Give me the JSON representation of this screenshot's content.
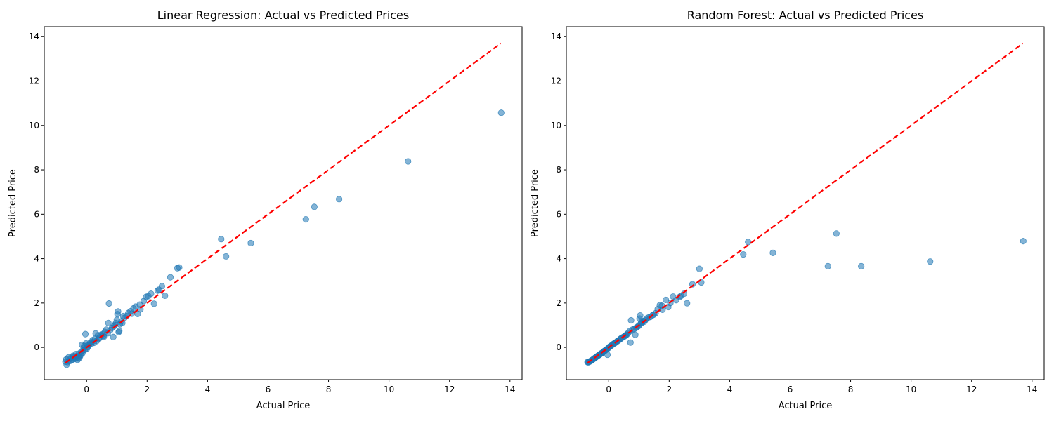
{
  "chart_data": [
    {
      "type": "scatter",
      "title": "Linear Regression: Actual vs Predicted Prices",
      "xlabel": "Actual Price",
      "ylabel": "Predicted Price",
      "xlim": [
        -1.4,
        14.4
      ],
      "ylim": [
        -1.45,
        14.45
      ],
      "xticks": [
        0,
        2,
        4,
        6,
        8,
        10,
        12,
        14
      ],
      "yticks": [
        0,
        2,
        4,
        6,
        8,
        10,
        12,
        14
      ],
      "grid": false,
      "point_color": "#1f77b4",
      "point_alpha": 0.55,
      "reference_line": {
        "x": [
          -0.7,
          13.7
        ],
        "y": [
          -0.7,
          13.7
        ],
        "color": "#ff0000",
        "style": "dashed"
      },
      "points": [
        [
          13.71,
          10.57
        ],
        [
          10.63,
          8.38
        ],
        [
          8.35,
          6.68
        ],
        [
          7.53,
          6.33
        ],
        [
          7.25,
          5.77
        ],
        [
          4.45,
          4.88
        ],
        [
          5.43,
          4.7
        ],
        [
          4.61,
          4.1
        ],
        [
          3.0,
          3.57
        ],
        [
          3.06,
          3.6
        ],
        [
          2.77,
          3.16
        ],
        [
          2.49,
          2.76
        ],
        [
          2.59,
          2.33
        ],
        [
          2.39,
          2.6
        ],
        [
          2.35,
          2.56
        ],
        [
          2.23,
          1.97
        ],
        [
          2.13,
          2.42
        ],
        [
          2.04,
          2.31
        ],
        [
          1.97,
          2.28
        ],
        [
          1.89,
          2.09
        ],
        [
          1.78,
          1.72
        ],
        [
          1.76,
          1.93
        ],
        [
          1.69,
          1.51
        ],
        [
          1.62,
          1.84
        ],
        [
          1.55,
          1.76
        ],
        [
          1.49,
          1.52
        ],
        [
          1.45,
          1.63
        ],
        [
          1.38,
          1.55
        ],
        [
          1.32,
          1.41
        ],
        [
          1.25,
          1.33
        ],
        [
          1.21,
          1.41
        ],
        [
          1.15,
          1.18
        ],
        [
          1.1,
          1.04
        ],
        [
          1.08,
          0.74
        ],
        [
          1.06,
          0.69
        ],
        [
          1.04,
          1.62
        ],
        [
          1.02,
          1.5
        ],
        [
          1.0,
          1.24
        ],
        [
          0.97,
          1.1
        ],
        [
          0.93,
          1.01
        ],
        [
          0.88,
          0.47
        ],
        [
          0.84,
          0.88
        ],
        [
          0.78,
          0.78
        ],
        [
          0.74,
          1.98
        ],
        [
          0.72,
          1.1
        ],
        [
          0.7,
          0.64
        ],
        [
          0.65,
          0.8
        ],
        [
          0.6,
          0.7
        ],
        [
          0.57,
          0.48
        ],
        [
          0.52,
          0.59
        ],
        [
          0.47,
          0.56
        ],
        [
          0.42,
          0.43
        ],
        [
          0.38,
          0.55
        ],
        [
          0.33,
          0.29
        ],
        [
          0.3,
          0.63
        ],
        [
          0.28,
          0.39
        ],
        [
          0.24,
          0.21
        ],
        [
          0.2,
          0.33
        ],
        [
          0.15,
          0.15
        ],
        [
          0.12,
          0.21
        ],
        [
          0.08,
          0.1
        ],
        [
          0.04,
          0.02
        ],
        [
          0.01,
          -0.05
        ],
        [
          -0.02,
          0.18
        ],
        [
          -0.04,
          0.6
        ],
        [
          -0.06,
          -0.11
        ],
        [
          -0.08,
          0.07
        ],
        [
          -0.12,
          -0.14
        ],
        [
          -0.15,
          0.12
        ],
        [
          -0.18,
          -0.2
        ],
        [
          -0.2,
          -0.34
        ],
        [
          -0.22,
          -0.41
        ],
        [
          -0.25,
          -0.28
        ],
        [
          -0.28,
          -0.46
        ],
        [
          -0.3,
          -0.56
        ],
        [
          -0.33,
          -0.39
        ],
        [
          -0.36,
          -0.48
        ],
        [
          -0.4,
          -0.52
        ],
        [
          -0.43,
          -0.43
        ],
        [
          -0.46,
          -0.55
        ],
        [
          -0.5,
          -0.46
        ],
        [
          -0.53,
          -0.6
        ],
        [
          -0.56,
          -0.5
        ],
        [
          -0.6,
          -0.45
        ],
        [
          -0.63,
          -0.66
        ],
        [
          -0.66,
          -0.78
        ],
        [
          -0.68,
          -0.55
        ],
        [
          -0.7,
          -0.64
        ],
        [
          -0.35,
          -0.3
        ],
        [
          -0.1,
          -0.02
        ],
        [
          0.05,
          0.12
        ],
        [
          0.18,
          0.25
        ],
        [
          0.4,
          0.38
        ],
        [
          0.55,
          0.52
        ],
        [
          0.9,
          0.95
        ],
        [
          1.18,
          1.1
        ],
        [
          -0.45,
          -0.38
        ],
        [
          -0.58,
          -0.62
        ],
        [
          -0.26,
          -0.5
        ],
        [
          -0.14,
          -0.26
        ]
      ]
    },
    {
      "type": "scatter",
      "title": "Random Forest: Actual vs Predicted Prices",
      "xlabel": "Actual Price",
      "ylabel": "Predicted Price",
      "xlim": [
        -1.4,
        14.4
      ],
      "ylim": [
        -1.45,
        14.45
      ],
      "xticks": [
        0,
        2,
        4,
        6,
        8,
        10,
        12,
        14
      ],
      "yticks": [
        0,
        2,
        4,
        6,
        8,
        10,
        12,
        14
      ],
      "grid": false,
      "point_color": "#1f77b4",
      "point_alpha": 0.55,
      "reference_line": {
        "x": [
          -0.7,
          13.7
        ],
        "y": [
          -0.7,
          13.7
        ],
        "color": "#ff0000",
        "style": "dashed"
      },
      "points": [
        [
          13.71,
          4.79
        ],
        [
          10.63,
          3.87
        ],
        [
          8.35,
          3.66
        ],
        [
          7.53,
          5.13
        ],
        [
          7.25,
          3.66
        ],
        [
          4.45,
          4.19
        ],
        [
          5.43,
          4.26
        ],
        [
          4.61,
          4.75
        ],
        [
          3.0,
          3.54
        ],
        [
          3.06,
          2.93
        ],
        [
          2.77,
          2.85
        ],
        [
          2.49,
          2.42
        ],
        [
          2.59,
          1.99
        ],
        [
          2.39,
          2.32
        ],
        [
          2.35,
          2.28
        ],
        [
          2.23,
          2.13
        ],
        [
          2.13,
          2.29
        ],
        [
          2.04,
          2.0
        ],
        [
          1.97,
          1.82
        ],
        [
          1.89,
          2.14
        ],
        [
          1.78,
          1.7
        ],
        [
          1.76,
          1.88
        ],
        [
          1.69,
          1.9
        ],
        [
          1.62,
          1.72
        ],
        [
          1.55,
          1.54
        ],
        [
          1.49,
          1.48
        ],
        [
          1.45,
          1.45
        ],
        [
          1.38,
          1.38
        ],
        [
          1.32,
          1.35
        ],
        [
          1.25,
          1.3
        ],
        [
          1.21,
          1.23
        ],
        [
          1.15,
          1.19
        ],
        [
          1.1,
          1.1
        ],
        [
          1.08,
          1.14
        ],
        [
          1.06,
          1.08
        ],
        [
          1.04,
          1.44
        ],
        [
          1.02,
          1.3
        ],
        [
          1.0,
          0.98
        ],
        [
          0.97,
          0.95
        ],
        [
          0.93,
          0.9
        ],
        [
          0.88,
          0.57
        ],
        [
          0.84,
          0.83
        ],
        [
          0.78,
          0.8
        ],
        [
          0.74,
          1.22
        ],
        [
          0.72,
          0.22
        ],
        [
          0.7,
          0.74
        ],
        [
          0.65,
          0.66
        ],
        [
          0.6,
          0.58
        ],
        [
          0.57,
          0.55
        ],
        [
          0.52,
          0.5
        ],
        [
          0.47,
          0.46
        ],
        [
          0.42,
          0.42
        ],
        [
          0.38,
          0.37
        ],
        [
          0.33,
          0.32
        ],
        [
          0.3,
          0.3
        ],
        [
          0.28,
          0.27
        ],
        [
          0.24,
          0.23
        ],
        [
          0.2,
          0.19
        ],
        [
          0.15,
          0.15
        ],
        [
          0.12,
          0.12
        ],
        [
          0.08,
          0.08
        ],
        [
          0.04,
          0.04
        ],
        [
          0.01,
          0.0
        ],
        [
          -0.02,
          -0.04
        ],
        [
          -0.04,
          -0.33
        ],
        [
          -0.06,
          -0.08
        ],
        [
          -0.08,
          -0.1
        ],
        [
          -0.12,
          -0.14
        ],
        [
          -0.15,
          -0.17
        ],
        [
          -0.18,
          -0.2
        ],
        [
          -0.2,
          -0.23
        ],
        [
          -0.22,
          -0.25
        ],
        [
          -0.25,
          -0.27
        ],
        [
          -0.28,
          -0.3
        ],
        [
          -0.3,
          -0.33
        ],
        [
          -0.33,
          -0.35
        ],
        [
          -0.36,
          -0.38
        ],
        [
          -0.4,
          -0.42
        ],
        [
          -0.43,
          -0.45
        ],
        [
          -0.46,
          -0.48
        ],
        [
          -0.5,
          -0.52
        ],
        [
          -0.53,
          -0.55
        ],
        [
          -0.56,
          -0.58
        ],
        [
          -0.6,
          -0.61
        ],
        [
          -0.63,
          -0.64
        ],
        [
          -0.66,
          -0.66
        ],
        [
          -0.68,
          -0.67
        ],
        [
          -0.7,
          -0.66
        ],
        [
          -0.35,
          -0.37
        ],
        [
          -0.1,
          -0.12
        ],
        [
          0.05,
          0.05
        ],
        [
          0.18,
          0.18
        ],
        [
          0.4,
          0.4
        ],
        [
          0.55,
          0.54
        ],
        [
          0.9,
          0.88
        ],
        [
          1.18,
          1.16
        ],
        [
          -0.45,
          -0.47
        ],
        [
          -0.58,
          -0.6
        ],
        [
          -0.26,
          -0.28
        ],
        [
          -0.14,
          -0.16
        ]
      ]
    }
  ]
}
